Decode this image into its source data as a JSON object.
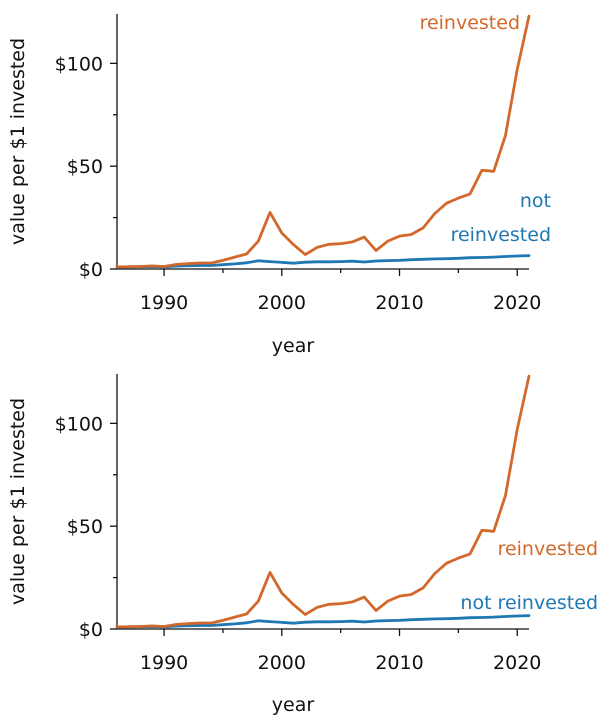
{
  "chart_data": [
    {
      "type": "line",
      "xlabel": "year",
      "ylabel": "value per $1 invested",
      "xlim": [
        1986,
        2021
      ],
      "ylim": [
        0,
        124
      ],
      "x_ticks": [
        1990,
        2000,
        2010,
        2020
      ],
      "y_ticks": [
        0,
        50,
        100
      ],
      "y_tick_labels": [
        "$0",
        "$50",
        "$100"
      ],
      "grid": false,
      "x": [
        1986,
        1987,
        1988,
        1989,
        1990,
        1991,
        1992,
        1993,
        1994,
        1995,
        1996,
        1997,
        1998,
        1999,
        2000,
        2001,
        2002,
        2003,
        2004,
        2005,
        2006,
        2007,
        2008,
        2009,
        2010,
        2011,
        2012,
        2013,
        2014,
        2015,
        2016,
        2017,
        2018,
        2019,
        2020,
        2021
      ],
      "series": [
        {
          "name": "reinvested",
          "label_lines": [
            "reinvested"
          ],
          "label_position": "top-right",
          "color": "#d2692a",
          "values": [
            1.0,
            1.1,
            1.2,
            1.5,
            1.2,
            2.2,
            2.6,
            2.9,
            2.9,
            4.2,
            5.8,
            7.3,
            13.5,
            27.5,
            17.5,
            11.8,
            7.0,
            10.5,
            12.0,
            12.3,
            13.2,
            15.5,
            9.0,
            13.5,
            16.0,
            16.8,
            20.0,
            27.0,
            32.0,
            34.5,
            36.5,
            48.0,
            47.5,
            65.0,
            97.0,
            123.0
          ]
        },
        {
          "name": "not reinvested",
          "label_lines": [
            "not",
            "reinvested"
          ],
          "label_position": "right",
          "color": "#1f77b4",
          "values": [
            1.0,
            1.0,
            1.1,
            1.2,
            1.0,
            1.4,
            1.6,
            1.7,
            1.7,
            2.1,
            2.5,
            3.0,
            4.0,
            3.6,
            3.2,
            2.8,
            3.3,
            3.5,
            3.5,
            3.6,
            3.8,
            3.4,
            3.9,
            4.1,
            4.2,
            4.5,
            4.7,
            4.9,
            5.0,
            5.2,
            5.5,
            5.6,
            5.8,
            6.1,
            6.3,
            6.5
          ]
        }
      ]
    },
    {
      "type": "line",
      "xlabel": "year",
      "ylabel": "value per $1 invested",
      "xlim": [
        1986,
        2021
      ],
      "ylim": [
        0,
        124
      ],
      "x_ticks": [
        1990,
        2000,
        2010,
        2020
      ],
      "y_ticks": [
        0,
        50,
        100
      ],
      "y_tick_labels": [
        "$0",
        "$50",
        "$100"
      ],
      "grid": false,
      "x": [
        1986,
        1987,
        1988,
        1989,
        1990,
        1991,
        1992,
        1993,
        1994,
        1995,
        1996,
        1997,
        1998,
        1999,
        2000,
        2001,
        2002,
        2003,
        2004,
        2005,
        2006,
        2007,
        2008,
        2009,
        2010,
        2011,
        2012,
        2013,
        2014,
        2015,
        2016,
        2017,
        2018,
        2019,
        2020,
        2021
      ],
      "series": [
        {
          "name": "reinvested",
          "label_lines": [
            "reinvested"
          ],
          "label_position": "right-end",
          "color": "#d2692a",
          "values": [
            1.0,
            1.1,
            1.2,
            1.5,
            1.2,
            2.2,
            2.6,
            2.9,
            2.9,
            4.2,
            5.8,
            7.3,
            13.5,
            27.5,
            17.5,
            11.8,
            7.0,
            10.5,
            12.0,
            12.3,
            13.2,
            15.5,
            9.0,
            13.5,
            16.0,
            16.8,
            20.0,
            27.0,
            32.0,
            34.5,
            36.5,
            48.0,
            47.5,
            65.0,
            97.0,
            123.0
          ]
        },
        {
          "name": "not reinvested",
          "label_lines": [
            "not reinvested"
          ],
          "label_position": "right-end",
          "color": "#1f77b4",
          "values": [
            1.0,
            1.0,
            1.1,
            1.2,
            1.0,
            1.4,
            1.6,
            1.7,
            1.7,
            2.1,
            2.5,
            3.0,
            4.0,
            3.6,
            3.2,
            2.8,
            3.3,
            3.5,
            3.5,
            3.6,
            3.8,
            3.4,
            3.9,
            4.1,
            4.2,
            4.5,
            4.7,
            4.9,
            5.0,
            5.2,
            5.5,
            5.6,
            5.8,
            6.1,
            6.3,
            6.5
          ]
        }
      ]
    }
  ]
}
